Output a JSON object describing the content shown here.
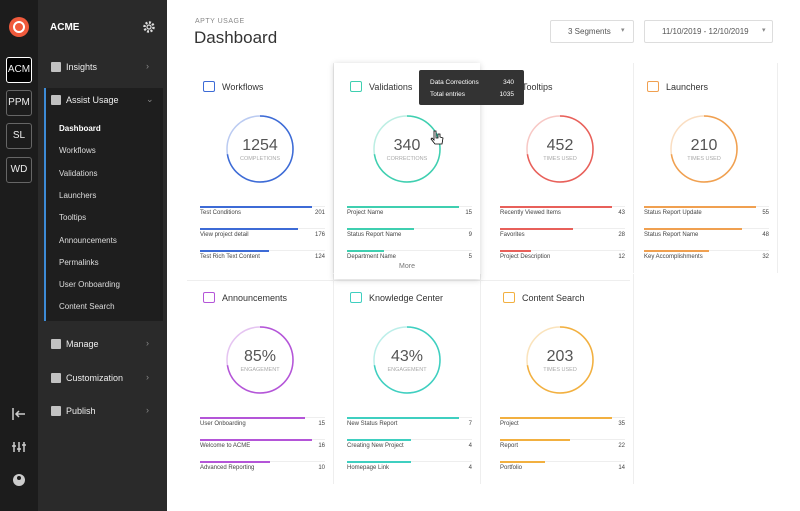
{
  "sidebar": {
    "brand": "ACME",
    "orgs": [
      "ACM",
      "PPM",
      "SL",
      "WD"
    ],
    "menu": [
      {
        "label": "Insights"
      },
      {
        "label": "Assist Usage",
        "items": [
          "Dashboard",
          "Workflows",
          "Validations",
          "Launchers",
          "Tooltips",
          "Announcements",
          "Permalinks",
          "User Onboarding",
          "Content Search"
        ]
      },
      {
        "label": "Manage"
      },
      {
        "label": "Customization"
      },
      {
        "label": "Publish"
      }
    ]
  },
  "header": {
    "eyebrow": "APTY USAGE",
    "title": "Dashboard",
    "segments": "3 Segments",
    "date_range": "11/10/2019 - 12/10/2019"
  },
  "cards": [
    {
      "title": "Workflows",
      "color": "#3d6bd6",
      "metric": "1254",
      "metric_label": "COMPLETIONS",
      "rows": [
        {
          "label": "Test Conditions",
          "value": 201
        },
        {
          "label": "View project detail",
          "value": 176
        },
        {
          "label": "Test Rich Text Content",
          "value": 124
        }
      ]
    },
    {
      "title": "Validations",
      "color": "#3fcfb0",
      "metric": "340",
      "metric_label": "CORRECTIONS",
      "more": "More",
      "rows": [
        {
          "label": "Project Name",
          "value": 15
        },
        {
          "label": "Status Report Name",
          "value": 9
        },
        {
          "label": "Department Name",
          "value": 5
        }
      ]
    },
    {
      "title": "Tooltips",
      "color": "#e8605a",
      "metric": "452",
      "metric_label": "TIMES USED",
      "rows": [
        {
          "label": "Recently Viewed Items",
          "value": 43
        },
        {
          "label": "Favorites",
          "value": 28
        },
        {
          "label": "Project Description",
          "value": 12
        }
      ]
    },
    {
      "title": "Launchers",
      "color": "#f0a050",
      "metric": "210",
      "metric_label": "TIMES USED",
      "rows": [
        {
          "label": "Status Report Update",
          "value": 55
        },
        {
          "label": "Status Report Name",
          "value": 48
        },
        {
          "label": "Key Accomplishments",
          "value": 32
        }
      ]
    },
    {
      "title": "Announcements",
      "color": "#b455d8",
      "metric": "85%",
      "metric_label": "ENGAGEMENT",
      "rows": [
        {
          "label": "User Onboarding",
          "value": 15
        },
        {
          "label": "Welcome to ACME",
          "value": 16
        },
        {
          "label": "Advanced Reporting",
          "value": 10
        }
      ]
    },
    {
      "title": "Knowledge Center",
      "color": "#3fcfc0",
      "metric": "43%",
      "metric_label": "ENGAGEMENT",
      "rows": [
        {
          "label": "New Status Report",
          "value": 7
        },
        {
          "label": "Creating New Project",
          "value": 4
        },
        {
          "label": "Homepage Link",
          "value": 4
        }
      ]
    },
    {
      "title": "Content Search",
      "color": "#f2b040",
      "metric": "203",
      "metric_label": "TIMES USED",
      "rows": [
        {
          "label": "Project",
          "value": 35
        },
        {
          "label": "Report",
          "value": 22
        },
        {
          "label": "Portfolio",
          "value": 14
        }
      ]
    }
  ],
  "tooltip": {
    "rows": [
      {
        "label": "Data Corrections",
        "value": 340
      },
      {
        "label": "Total entries",
        "value": 1035
      }
    ]
  }
}
